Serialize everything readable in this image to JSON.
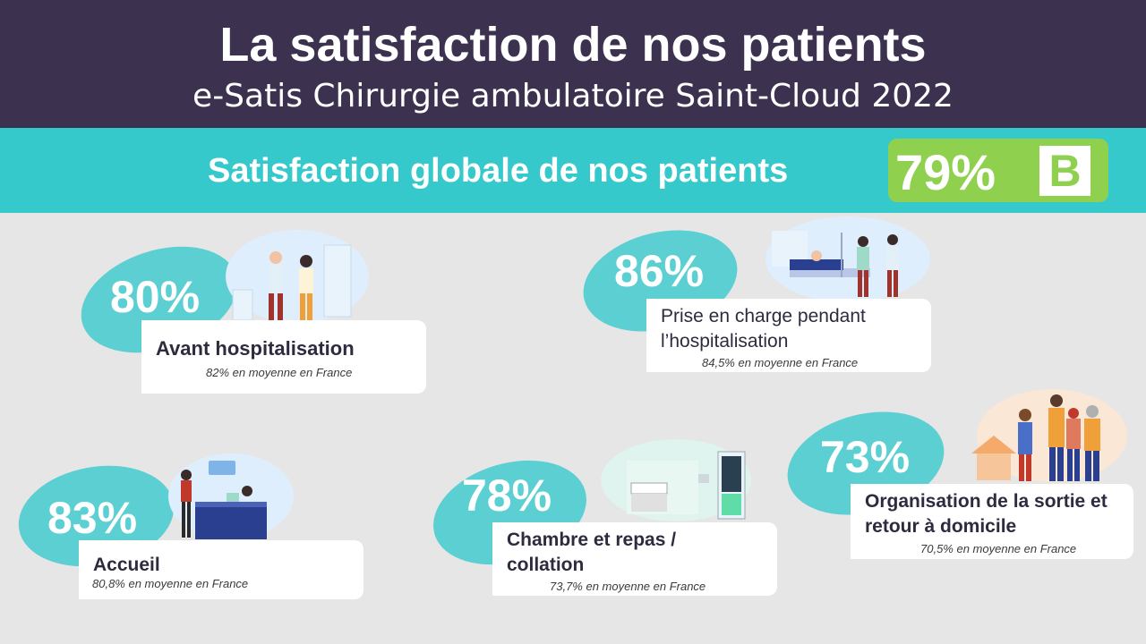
{
  "header": {
    "title": "La satisfaction de nos patients",
    "subtitle": "e-Satis Chirurgie ambulatoire Saint-Cloud 2022"
  },
  "global": {
    "label": "Satisfaction globale de nos patients",
    "value": "79%",
    "grade": "B",
    "icon": "curved-arrow-icon"
  },
  "colors": {
    "header_bg": "#3c3250",
    "band_bg": "#35c9cc",
    "score_bg": "#8fd14f",
    "blob": "#5bcfd1",
    "page_bg": "#e6e6e6"
  },
  "items": [
    {
      "value": "80%",
      "label": "Avant hospitalisation",
      "sub": "82% en moyenne en France",
      "illustration": "doctors-consultation-illustration"
    },
    {
      "value": "86%",
      "label": "Prise en charge pendant l’hospitalisation",
      "sub": "84,5% en moyenne en France",
      "illustration": "patient-in-bed-illustration"
    },
    {
      "value": "83%",
      "label": "Accueil",
      "sub": "80,8% en moyenne en France",
      "illustration": "reception-desk-illustration"
    },
    {
      "value": "78%",
      "label": "Chambre et repas / collation",
      "sub": "73,7% en moyenne en France",
      "illustration": "hospital-room-illustration"
    },
    {
      "value": "73%",
      "label": "Organisation de la sortie et retour à domicile",
      "sub": "70,5% en moyenne en France",
      "illustration": "family-home-illustration"
    }
  ]
}
